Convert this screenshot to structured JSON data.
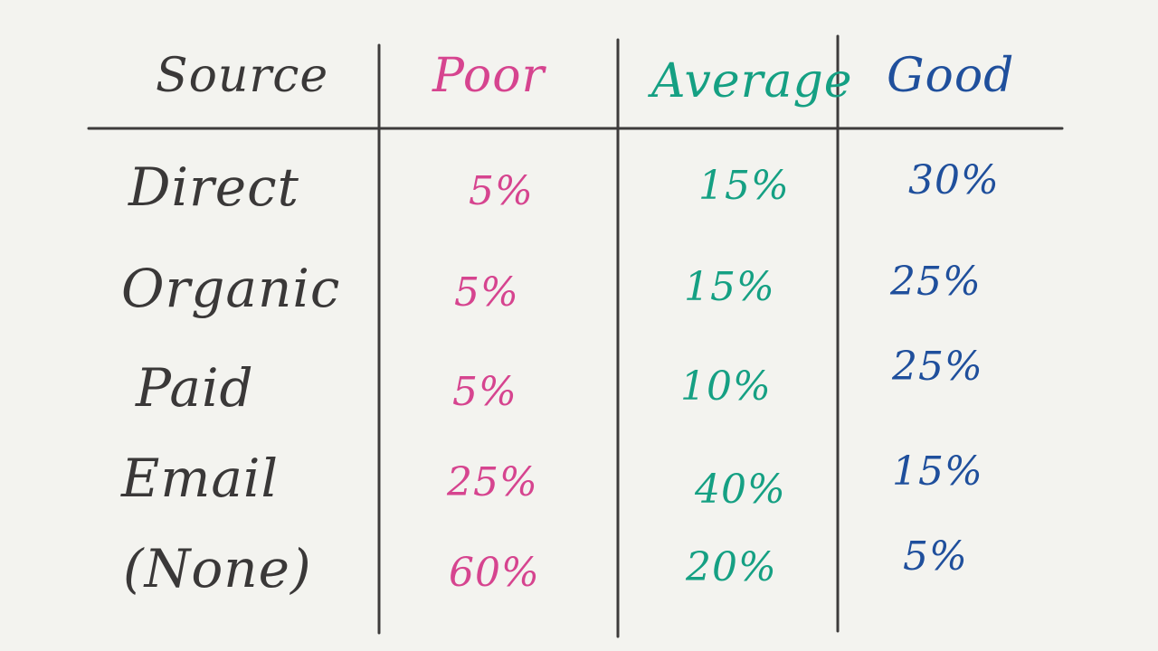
{
  "colors": {
    "background": "#f3f3ef",
    "ink": "#3a3838",
    "poor": "#d6448f",
    "average": "#15a083",
    "good": "#1f4f9c"
  },
  "chart_data": {
    "type": "table",
    "columns": [
      "Source",
      "Poor",
      "Average",
      "Good"
    ],
    "rows": [
      {
        "source": "Direct",
        "poor": "5%",
        "average": "15%",
        "good": "30%"
      },
      {
        "source": "Organic",
        "poor": "5%",
        "average": "15%",
        "good": "25%"
      },
      {
        "source": "Paid",
        "poor": "5%",
        "average": "10%",
        "good": "25%"
      },
      {
        "source": "Email",
        "poor": "25%",
        "average": "40%",
        "good": "15%"
      },
      {
        "source": "(None)",
        "poor": "60%",
        "average": "20%",
        "good": "5%"
      }
    ]
  }
}
